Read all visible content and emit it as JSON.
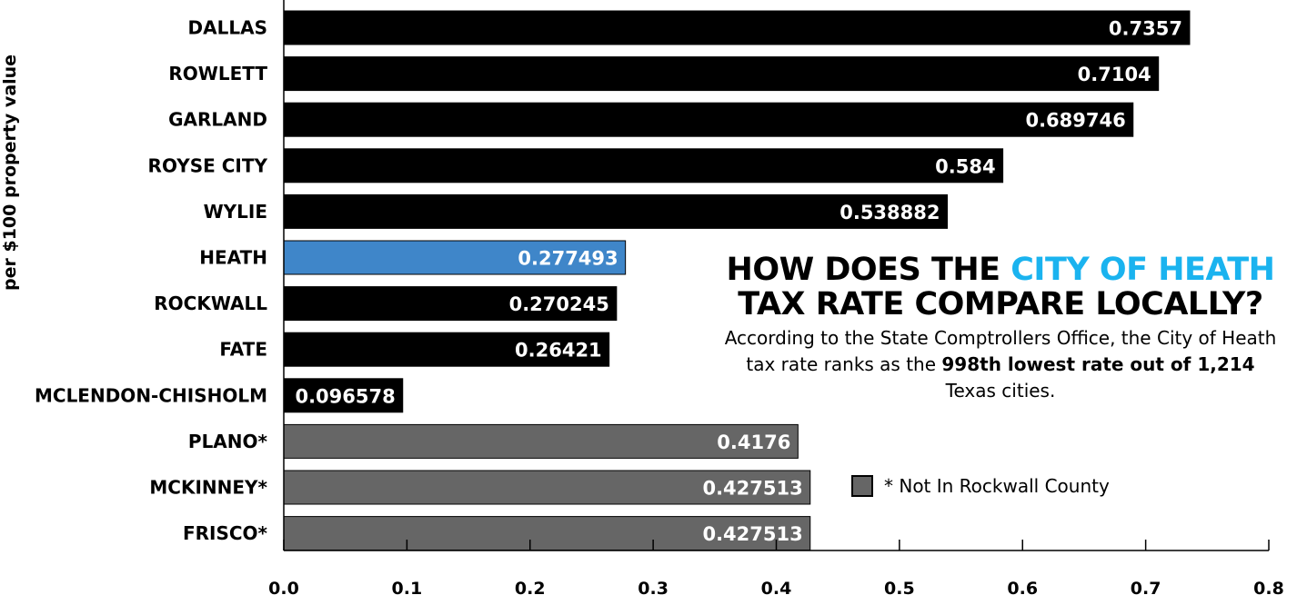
{
  "chart_data": {
    "type": "bar",
    "orientation": "horizontal",
    "categories": [
      "DALLAS",
      "ROWLETT",
      "GARLAND",
      "ROYSE CITY",
      "WYLIE",
      "HEATH",
      "ROCKWALL",
      "FATE",
      "MCLENDON-CHISHOLM",
      "PLANO*",
      "MCKINNEY*",
      "FRISCO*"
    ],
    "values": [
      0.7357,
      0.7104,
      0.689746,
      0.584,
      0.538882,
      0.277493,
      0.270245,
      0.26421,
      0.096578,
      0.4176,
      0.427513,
      0.427513
    ],
    "value_labels": [
      "0.7357",
      "0.7104",
      "0.689746",
      "0.584",
      "0.538882",
      "0.277493",
      "0.270245",
      "0.26421",
      "0.096578",
      "0.4176",
      "0.427513",
      "0.427513"
    ],
    "bar_colors": [
      "#000000",
      "#000000",
      "#000000",
      "#000000",
      "#000000",
      "#3f86c9",
      "#000000",
      "#000000",
      "#000000",
      "#666666",
      "#666666",
      "#666666"
    ],
    "xlim": [
      0,
      0.8
    ],
    "x_ticks": [
      "0.0",
      "0.1",
      "0.2",
      "0.3",
      "0.4",
      "0.5",
      "0.6",
      "0.7",
      "0.8"
    ],
    "ylabel": "per $100 property value",
    "grid": false,
    "legend": {
      "position": "bottom-right",
      "entries": [
        {
          "label": "* Not In Rockwall County",
          "color": "#666666"
        }
      ]
    }
  },
  "annotation": {
    "headline_line1_before": "HOW DOES THE ",
    "headline_line1_accent": "CITY OF HEATH",
    "headline_line2": "TAX RATE COMPARE LOCALLY?",
    "subtext_line1": "According to the State Comptrollers Office, the City of Heath",
    "subtext_line2_before": "tax rate ranks as the ",
    "subtext_line2_bold": "998th lowest rate out of 1,214",
    "subtext_line3": "Texas cities.",
    "accent_color": "#1ab3ef"
  }
}
